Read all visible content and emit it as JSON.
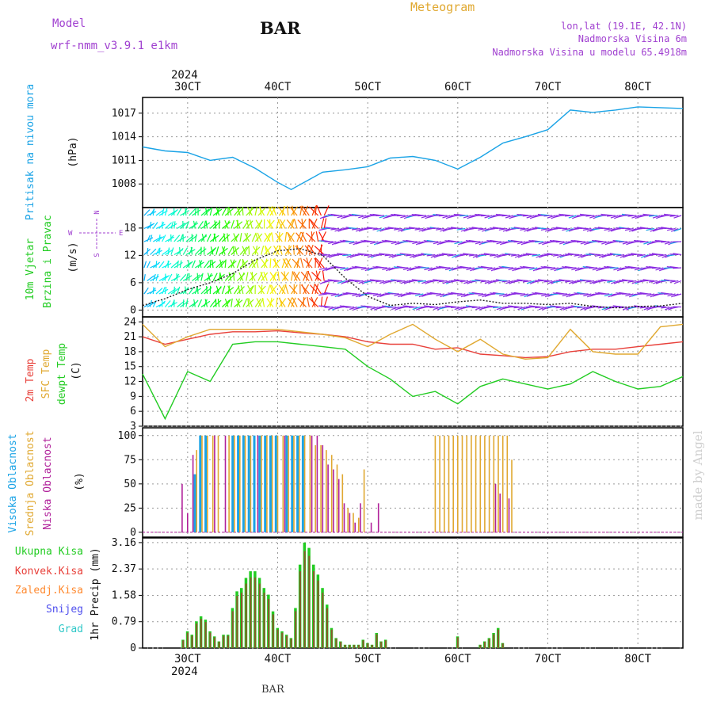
{
  "header": {
    "model_label": "Model",
    "model_name": "wrf-nmm_v3.9.1 e1km",
    "station": "BAR",
    "product": "Meteogram",
    "lonlat": "lon,lat (19.1E, 42.1N)",
    "elevation": "Nadmorska Visina 6m",
    "model_elevation": "Nadmorska Visina u modelu 65.4918m",
    "watermark": "made by Angel",
    "bottom_station": "BAR"
  },
  "colors": {
    "pressure": "#1aa3e6",
    "temp2m": "#e8403a",
    "sfc": "#e0a830",
    "dewpt": "#22cc22",
    "visoka": "#1aa3e6",
    "srednja": "#e0a830",
    "niska": "#b0209a",
    "ukupna": "#22cc22",
    "konvek": "#e8403a",
    "zaledj": "#ff8a30",
    "snijeg": "#5050ee",
    "grad": "#30c8c8",
    "purple_text": "#a040d0"
  },
  "chart_data": [
    {
      "type": "line",
      "panel": "pressure",
      "ylabel_colored": "Pritisak na nivou mora",
      "ylabel_unit": "(hPa)",
      "y_ticks": [
        "1008",
        "1011",
        "1014",
        "1017"
      ],
      "ylim": [
        1005,
        1019
      ],
      "x": [
        2.5,
        2.75,
        3.0,
        3.25,
        3.5,
        3.75,
        4.0,
        4.15,
        4.5,
        4.75,
        5.0,
        5.25,
        5.5,
        5.75,
        6.0,
        6.25,
        6.5,
        6.75,
        7.0,
        7.25,
        7.5,
        7.75,
        8.0,
        8.25,
        8.5
      ],
      "values": [
        1012.7,
        1012.2,
        1012.0,
        1011.0,
        1011.4,
        1010.0,
        1008.2,
        1007.3,
        1009.5,
        1009.8,
        1010.2,
        1011.3,
        1011.5,
        1011.0,
        1009.9,
        1011.4,
        1013.2,
        1014.0,
        1014.9,
        1017.4,
        1017.1,
        1017.4,
        1017.8,
        1017.7,
        1017.6
      ],
      "grid": true
    },
    {
      "type": "line",
      "panel": "wind",
      "ylabel_colored": "10m Vjetar",
      "ylabel_colored2": "Brzina i Pravac",
      "ylabel_unit": "(m/s)",
      "compass": [
        "N",
        "W",
        "E",
        "S"
      ],
      "y_ticks": [
        "0",
        "6",
        "12",
        "18"
      ],
      "ylim": [
        -1.5,
        22.5
      ],
      "x": [
        2.5,
        2.75,
        3.0,
        3.25,
        3.5,
        3.75,
        4.0,
        4.25,
        4.5,
        4.75,
        5.0,
        5.25,
        5.5,
        5.75,
        6.0,
        6.25,
        6.5,
        6.75,
        7.0,
        7.25,
        7.5,
        7.75,
        8.0,
        8.25,
        8.5
      ],
      "series": [
        {
          "values": [
            1.0,
            2.5,
            4.5,
            6.0,
            8.0,
            11.0,
            13.0,
            13.5,
            12.0,
            7.0,
            3.0,
            1.0,
            1.5,
            1.2,
            1.8,
            2.2,
            1.5,
            1.5,
            1.2,
            1.5,
            0.8,
            0.5,
            0.8,
            0.9,
            1.5
          ]
        }
      ],
      "grid": true
    },
    {
      "type": "line",
      "panel": "temperature",
      "ylabel_2m": "2m Temp",
      "ylabel_sfc": "SFC Temp",
      "ylabel_dew": "dewpt Temp",
      "ylabel_unit": "(C)",
      "y_ticks": [
        "3",
        "6",
        "9",
        "12",
        "15",
        "18",
        "21",
        "24"
      ],
      "ylim": [
        3,
        25
      ],
      "x": [
        2.5,
        2.75,
        3.0,
        3.25,
        3.5,
        3.75,
        4.0,
        4.25,
        4.5,
        4.75,
        5.0,
        5.25,
        5.5,
        5.75,
        6.0,
        6.25,
        6.5,
        6.75,
        7.0,
        7.25,
        7.5,
        7.75,
        8.0,
        8.25,
        8.5
      ],
      "series": [
        {
          "name": "2m Temp",
          "values": [
            21.0,
            19.5,
            20.5,
            21.5,
            22.0,
            22.0,
            22.2,
            21.8,
            21.5,
            21.0,
            20.0,
            19.5,
            19.5,
            18.5,
            18.8,
            17.5,
            17.2,
            16.8,
            17.0,
            18.0,
            18.5,
            18.5,
            19.0,
            19.5,
            20.0
          ]
        },
        {
          "name": "SFC Temp",
          "values": [
            23.5,
            19.0,
            21.0,
            22.5,
            22.5,
            22.5,
            22.5,
            22.0,
            21.5,
            20.8,
            19.0,
            21.5,
            23.5,
            20.5,
            18.0,
            20.5,
            17.5,
            16.5,
            16.8,
            22.5,
            18.0,
            17.5,
            17.5,
            23.0,
            23.5
          ]
        },
        {
          "name": "dewpt Temp",
          "values": [
            13.5,
            4.5,
            14.0,
            12.0,
            19.5,
            20.0,
            20.0,
            19.5,
            19.0,
            18.5,
            15.0,
            12.5,
            9.0,
            10.0,
            7.5,
            11.0,
            12.5,
            11.5,
            10.5,
            11.5,
            14.0,
            12.0,
            10.5,
            11.0,
            13.0
          ]
        }
      ],
      "grid": true
    },
    {
      "type": "bar",
      "panel": "clouds",
      "ylabel_visoka": "Visoka Oblacnost",
      "ylabel_srednja": "Srednja Oblacnost",
      "ylabel_niska": "Niska Oblacnost",
      "ylabel_unit": "(%)",
      "y_ticks": [
        "0",
        "25",
        "50",
        "75",
        "100"
      ],
      "ylim": [
        -5,
        108
      ],
      "x": [
        2.92,
        2.98,
        3.04,
        3.1,
        3.16,
        3.22,
        3.28,
        3.34,
        3.4,
        3.46,
        3.52,
        3.58,
        3.64,
        3.7,
        3.76,
        3.82,
        3.88,
        3.94,
        4.0,
        4.06,
        4.12,
        4.18,
        4.24,
        4.3,
        4.36,
        4.42,
        4.48,
        4.54,
        4.6,
        4.66,
        4.72,
        4.78,
        4.84,
        4.9,
        4.96,
        5.02,
        5.1,
        5.75,
        5.8,
        5.85,
        5.9,
        5.95,
        6.0,
        6.05,
        6.1,
        6.15,
        6.2,
        6.25,
        6.3,
        6.35,
        6.4,
        6.45,
        6.5,
        6.55,
        6.6
      ],
      "series": [
        {
          "name": "Visoka Oblacnost",
          "values": [
            0,
            0,
            0,
            60,
            100,
            100,
            0,
            0,
            0,
            0,
            100,
            100,
            100,
            100,
            100,
            100,
            100,
            100,
            100,
            0,
            100,
            100,
            100,
            100,
            0,
            0,
            0,
            0,
            0,
            0,
            0,
            0,
            0,
            0,
            0,
            0,
            0,
            0,
            0,
            0,
            0,
            0,
            0,
            0,
            0,
            0,
            0,
            0,
            0,
            0,
            0,
            0,
            0,
            0,
            0
          ]
        },
        {
          "name": "Srednja Oblacnost",
          "values": [
            0,
            0,
            0,
            85,
            100,
            100,
            100,
            100,
            0,
            100,
            100,
            100,
            100,
            100,
            0,
            100,
            100,
            100,
            100,
            100,
            100,
            100,
            100,
            100,
            100,
            90,
            90,
            85,
            80,
            70,
            60,
            25,
            20,
            15,
            65,
            0,
            0,
            100,
            100,
            100,
            100,
            100,
            100,
            100,
            100,
            100,
            100,
            100,
            100,
            100,
            100,
            100,
            100,
            100,
            75
          ]
        },
        {
          "name": "Niska Oblacnost",
          "values": [
            50,
            20,
            80,
            0,
            0,
            0,
            100,
            0,
            100,
            0,
            0,
            0,
            0,
            0,
            100,
            0,
            0,
            0,
            0,
            100,
            0,
            0,
            0,
            0,
            100,
            100,
            90,
            70,
            65,
            55,
            30,
            20,
            10,
            30,
            0,
            10,
            30,
            0,
            0,
            0,
            0,
            0,
            0,
            0,
            0,
            0,
            0,
            0,
            0,
            0,
            50,
            40,
            0,
            35,
            0
          ]
        }
      ],
      "grid": true
    },
    {
      "type": "bar",
      "panel": "precipitation",
      "ylabel_unit": "1hr Precip (mm)",
      "legend": [
        "Ukupna Kisa",
        "Konvek.Kisa",
        "Zaledj.Kisa",
        "Snijeg",
        "Grad"
      ],
      "y_ticks": [
        "0",
        "0.79",
        "1.58",
        "2.37",
        "3.16"
      ],
      "ylim": [
        0,
        3.3
      ],
      "x": [
        2.95,
        3.0,
        3.05,
        3.1,
        3.15,
        3.2,
        3.25,
        3.3,
        3.35,
        3.4,
        3.45,
        3.5,
        3.55,
        3.6,
        3.65,
        3.7,
        3.75,
        3.8,
        3.85,
        3.9,
        3.95,
        4.0,
        4.05,
        4.1,
        4.15,
        4.2,
        4.25,
        4.3,
        4.35,
        4.4,
        4.45,
        4.5,
        4.55,
        4.6,
        4.65,
        4.7,
        4.75,
        4.8,
        4.85,
        4.9,
        4.95,
        5.0,
        5.05,
        5.1,
        5.15,
        5.2,
        6.0,
        6.25,
        6.3,
        6.35,
        6.4,
        6.45,
        6.5
      ],
      "values": [
        0.25,
        0.5,
        0.4,
        0.8,
        0.95,
        0.85,
        0.5,
        0.35,
        0.2,
        0.4,
        0.4,
        1.2,
        1.7,
        1.8,
        2.1,
        2.3,
        2.3,
        2.1,
        1.8,
        1.6,
        1.1,
        0.6,
        0.5,
        0.4,
        0.3,
        1.2,
        2.5,
        3.16,
        3.0,
        2.5,
        2.2,
        1.8,
        1.3,
        0.6,
        0.3,
        0.2,
        0.1,
        0.1,
        0.1,
        0.1,
        0.25,
        0.15,
        0.1,
        0.45,
        0.2,
        0.25,
        0.35,
        0.1,
        0.2,
        0.3,
        0.45,
        0.6,
        0.15
      ],
      "grid": true
    }
  ],
  "xaxis": {
    "ticks": [
      {
        "pos": 3,
        "label": "30CT"
      },
      {
        "pos": 4,
        "label": "40CT"
      },
      {
        "pos": 5,
        "label": "50CT"
      },
      {
        "pos": 6,
        "label": "60CT"
      },
      {
        "pos": 7,
        "label": "70CT"
      },
      {
        "pos": 8,
        "label": "80CT"
      }
    ],
    "year": "2024",
    "xlim": [
      2.5,
      8.5
    ]
  }
}
